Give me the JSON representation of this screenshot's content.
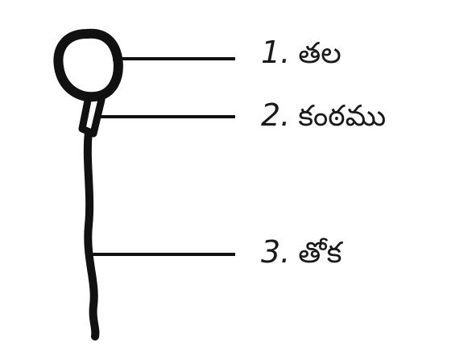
{
  "labels": [
    {
      "number": "1.",
      "text": "తల"
    },
    {
      "number": "2.",
      "text": "కంఠము"
    },
    {
      "number": "3.",
      "text": "తోక"
    }
  ],
  "colors": {
    "ink": "#111111",
    "text": "#1a1a1a",
    "background": "#ffffff"
  }
}
